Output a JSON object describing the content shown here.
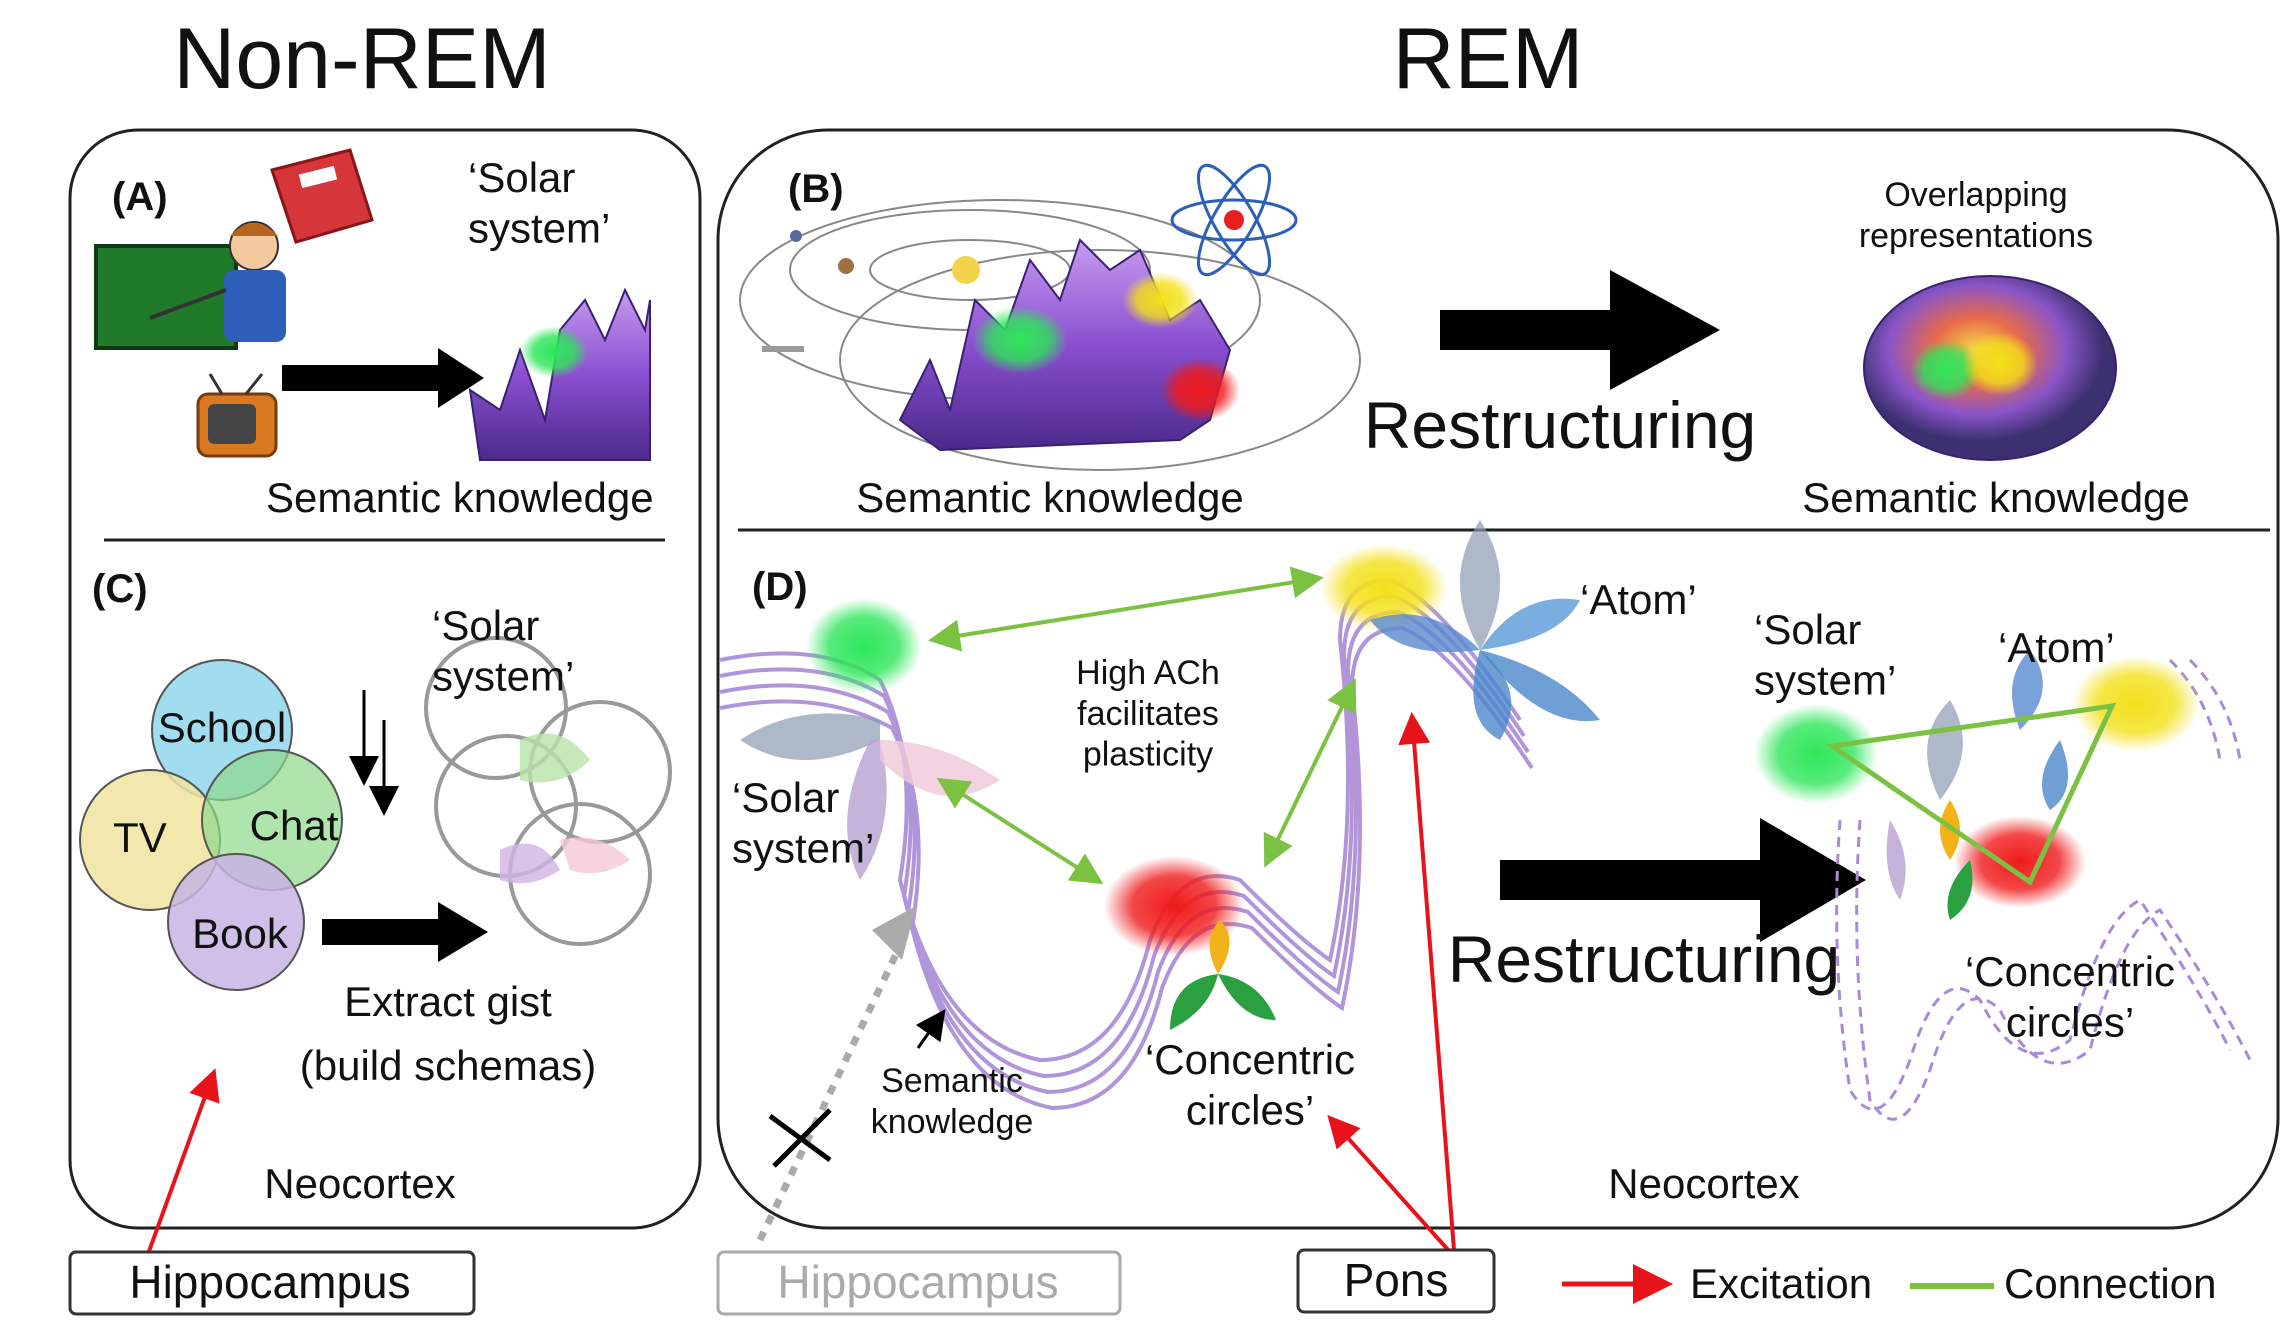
{
  "headers": {
    "non_rem": "Non-REM",
    "rem": "REM"
  },
  "panel_a": {
    "letter": "(A)",
    "solar_system": "‘Solar\nsystem’",
    "semantic_knowledge": "Semantic knowledge"
  },
  "panel_b": {
    "letter": "(B)",
    "overlapping": "Overlapping\nrepresentations",
    "restructuring": "Restructuring",
    "semantic_knowledge_left": "Semantic knowledge",
    "semantic_knowledge_right": "Semantic knowledge"
  },
  "panel_c": {
    "letter": "(C)",
    "solar_system": "‘Solar\nsystem’",
    "circles": [
      "School",
      "TV",
      "Chat",
      "Book"
    ],
    "extract_gist": "Extract gist",
    "build_schemas": "(build schemas)",
    "neocortex": "Neocortex"
  },
  "panel_d": {
    "letter": "(D)",
    "atom_left": "‘Atom’",
    "high_ach": "High ACh\nfacilitates\nplasticity",
    "solar_system_left": "‘Solar\nsystem’",
    "semantic_knowledge": "Semantic\nknowledge",
    "concentric_left": "‘Concentric\ncircles’",
    "restructuring": "Restructuring",
    "solar_system_right": "‘Solar\nsystem’",
    "atom_right": "‘Atom’",
    "concentric_right": "‘Concentric\ncircles’",
    "neocortex": "Neocortex"
  },
  "bottom": {
    "hippocampus_left": "Hippocampus",
    "hippocampus_right": "Hippocampus",
    "pons": "Pons",
    "legend_excitation": "Excitation",
    "legend_connection": "Connection"
  },
  "colors": {
    "excitation": "#e8121a",
    "connection": "#7cc242",
    "wave": "#a88ad6",
    "green_blob": "#2ee65a",
    "yellow_blob": "#f3e01a",
    "red_blob": "#f01a1a"
  }
}
